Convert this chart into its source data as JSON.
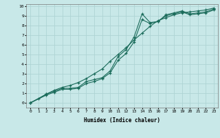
{
  "title": "",
  "xlabel": "Humidex (Indice chaleur)",
  "ylabel": "",
  "bg_color": "#c8e8e8",
  "grid_color": "#aed4d4",
  "line_color": "#1a6b5a",
  "xlim": [
    -0.5,
    23.5
  ],
  "ylim": [
    -0.5,
    10.2
  ],
  "xticks": [
    0,
    1,
    2,
    3,
    4,
    5,
    6,
    7,
    8,
    9,
    10,
    11,
    12,
    13,
    14,
    15,
    16,
    17,
    18,
    19,
    20,
    21,
    22,
    23
  ],
  "yticks": [
    0,
    1,
    2,
    3,
    4,
    5,
    6,
    7,
    8,
    9,
    10
  ],
  "series": [
    {
      "x": [
        0,
        2,
        3,
        4,
        5,
        6,
        7,
        8,
        9,
        10,
        11,
        12,
        13,
        14,
        15,
        16,
        17,
        18,
        19,
        20,
        21,
        22,
        23
      ],
      "y": [
        0,
        0.9,
        1.2,
        1.5,
        1.5,
        1.6,
        2.2,
        2.4,
        2.6,
        3.3,
        4.8,
        5.5,
        6.8,
        9.2,
        8.3,
        8.4,
        9.1,
        9.3,
        9.5,
        9.2,
        9.3,
        9.4,
        9.7
      ]
    },
    {
      "x": [
        0,
        2,
        3,
        4,
        5,
        6,
        7,
        8,
        9,
        10,
        11,
        12,
        13,
        14,
        15,
        16,
        17,
        18,
        19,
        20,
        21,
        22,
        23
      ],
      "y": [
        0,
        0.8,
        1.1,
        1.4,
        1.4,
        1.5,
        2.0,
        2.2,
        2.5,
        3.1,
        4.4,
        5.1,
        6.3,
        8.6,
        8.2,
        8.4,
        9.0,
        9.2,
        9.4,
        9.1,
        9.2,
        9.3,
        9.6
      ]
    },
    {
      "x": [
        0,
        1,
        2,
        3,
        4,
        5,
        6,
        7,
        8,
        9,
        10,
        11,
        12,
        13,
        14,
        15,
        16,
        17,
        18,
        19,
        20,
        21,
        22,
        23
      ],
      "y": [
        0,
        0.4,
        0.9,
        1.3,
        1.6,
        1.8,
        2.1,
        2.5,
        3.0,
        3.5,
        4.3,
        5.0,
        5.7,
        6.5,
        7.2,
        7.9,
        8.5,
        8.8,
        9.1,
        9.3,
        9.4,
        9.5,
        9.6,
        9.8
      ]
    }
  ]
}
